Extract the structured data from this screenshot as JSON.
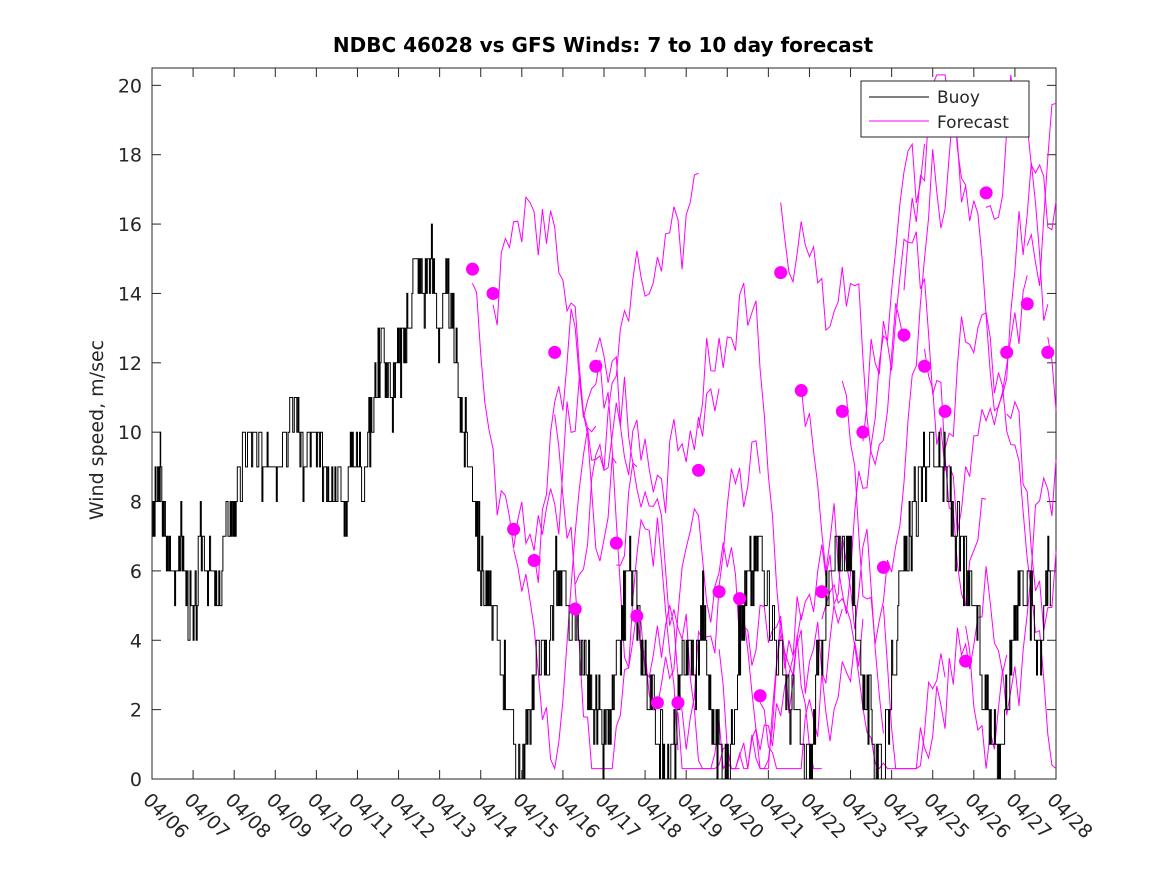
{
  "chart_data": {
    "type": "line",
    "title": "NDBC 46028 vs GFS Winds: 7 to 10 day forecast",
    "xlabel": "",
    "ylabel": "Wind speed, m/sec",
    "x_axis": {
      "type": "date",
      "range": [
        "04/06",
        "04/28"
      ],
      "tick_labels": [
        "04/06",
        "04/07",
        "04/08",
        "04/09",
        "04/10",
        "04/11",
        "04/12",
        "04/13",
        "04/14",
        "04/15",
        "04/16",
        "04/17",
        "04/18",
        "04/19",
        "04/20",
        "04/21",
        "04/22",
        "04/23",
        "04/24",
        "04/25",
        "04/26",
        "04/27",
        "04/28"
      ],
      "tick_rotation": "-45deg"
    },
    "ylim": [
      0,
      20.5
    ],
    "y_ticks": [
      0,
      2,
      4,
      6,
      8,
      10,
      12,
      14,
      16,
      18,
      20
    ],
    "grid": false,
    "legend": {
      "position": "top-right",
      "entries": [
        "Buoy",
        "Forecast"
      ]
    },
    "colors": {
      "buoy": "#000000",
      "forecast": "#ff00ff"
    },
    "series": [
      {
        "name": "Buoy",
        "style": "stair-line",
        "x_day_offset_from_04_06": [
          0,
          0.1,
          0.2,
          0.3,
          0.5,
          0.7,
          0.8,
          1.0,
          1.2,
          1.4,
          1.6,
          1.8,
          2.0,
          2.2,
          2.4,
          2.6,
          2.8,
          3.0,
          3.2,
          3.5,
          3.7,
          3.9,
          4.1,
          4.3,
          4.5,
          4.7,
          4.9,
          5.1,
          5.3,
          5.5,
          5.6,
          5.8,
          6.0,
          6.2,
          6.4,
          6.6,
          6.8,
          7.0,
          7.2,
          7.4,
          7.6,
          7.8,
          8.0,
          8.2,
          8.4,
          8.6,
          8.8,
          9.0,
          9.2,
          9.4,
          9.6,
          9.8,
          10.0,
          10.3,
          10.6,
          10.8,
          11.0,
          11.2,
          11.4,
          11.6,
          11.8,
          12.0,
          12.2,
          12.4,
          12.6,
          12.8,
          13.0,
          13.2,
          13.4,
          13.6,
          13.8,
          14.0,
          14.2,
          14.4,
          14.6,
          14.8,
          15.0,
          15.2,
          15.4,
          15.6,
          15.8,
          16.0,
          16.2,
          16.4,
          16.6,
          16.8,
          17.0,
          17.2,
          17.4,
          17.6,
          17.8,
          18.0,
          18.2,
          18.4,
          18.6,
          18.8,
          19.0,
          19.2,
          19.4,
          19.6,
          19.8,
          20.0,
          20.2,
          20.4,
          20.6,
          20.8,
          21.0,
          21.2,
          21.4,
          21.6,
          21.8,
          21.9
        ],
        "y": [
          7,
          8,
          9,
          7,
          6,
          7,
          6,
          4,
          7,
          6,
          5,
          7,
          8,
          9,
          10,
          9,
          10,
          9,
          10,
          11,
          9,
          10,
          9,
          8,
          9,
          8,
          10,
          9,
          10,
          12,
          13,
          11,
          12,
          13,
          15,
          14,
          15,
          13,
          14,
          12,
          10,
          9,
          6,
          5,
          4,
          3,
          1,
          0,
          2,
          4,
          3,
          6,
          5,
          4,
          3,
          2,
          1,
          2,
          4,
          6,
          5,
          3,
          2,
          1,
          0,
          2,
          4,
          3,
          5,
          2,
          1,
          0,
          3,
          5,
          6,
          7,
          5,
          4,
          3,
          2,
          1,
          0,
          3,
          5,
          6,
          7,
          6,
          4,
          2,
          1,
          0,
          3,
          5,
          7,
          8,
          9,
          10,
          9,
          8,
          7,
          6,
          5,
          3,
          2,
          1,
          2,
          5,
          6,
          5,
          4,
          6,
          5
        ]
      },
      {
        "name": "Forecast",
        "style": "magenta-lines-with-markers",
        "marker_x_day_offset_from_04_06": [
          7.8,
          8.3,
          8.8,
          9.3,
          9.8,
          10.3,
          10.8,
          11.3,
          11.8,
          12.3,
          12.8,
          13.3,
          13.8,
          14.3,
          14.8,
          15.3,
          15.8,
          16.3,
          16.8,
          17.3,
          17.8,
          18.3,
          18.8,
          19.3,
          19.8,
          20.3,
          20.8,
          21.3,
          21.8
        ],
        "marker_y": [
          14.7,
          14.0,
          7.2,
          6.3,
          12.3,
          4.9,
          11.9,
          6.8,
          4.7,
          2.2,
          2.2,
          8.9,
          5.4,
          5.2,
          2.4,
          14.6,
          11.2,
          5.4,
          10.6,
          10.0,
          6.1,
          12.8,
          11.9,
          10.6,
          3.4,
          16.9,
          12.3,
          13.7,
          12.3
        ]
      }
    ]
  }
}
